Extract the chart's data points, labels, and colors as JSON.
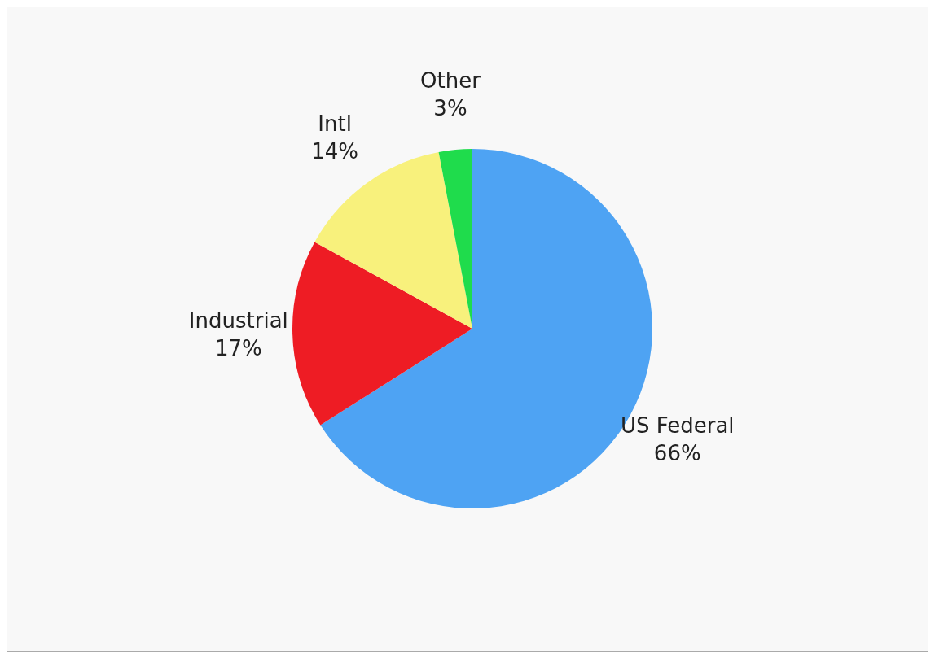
{
  "chart_data": {
    "type": "pie",
    "categories": [
      "US Federal",
      "Industrial",
      "Intl",
      "Other"
    ],
    "values": [
      66,
      17,
      14,
      3
    ],
    "colors": [
      "#4ea3f3",
      "#ee1c24",
      "#f8f17c",
      "#1fdc4c"
    ],
    "value_labels": [
      "66%",
      "17%",
      "14%",
      "3%"
    ],
    "legend": false
  }
}
